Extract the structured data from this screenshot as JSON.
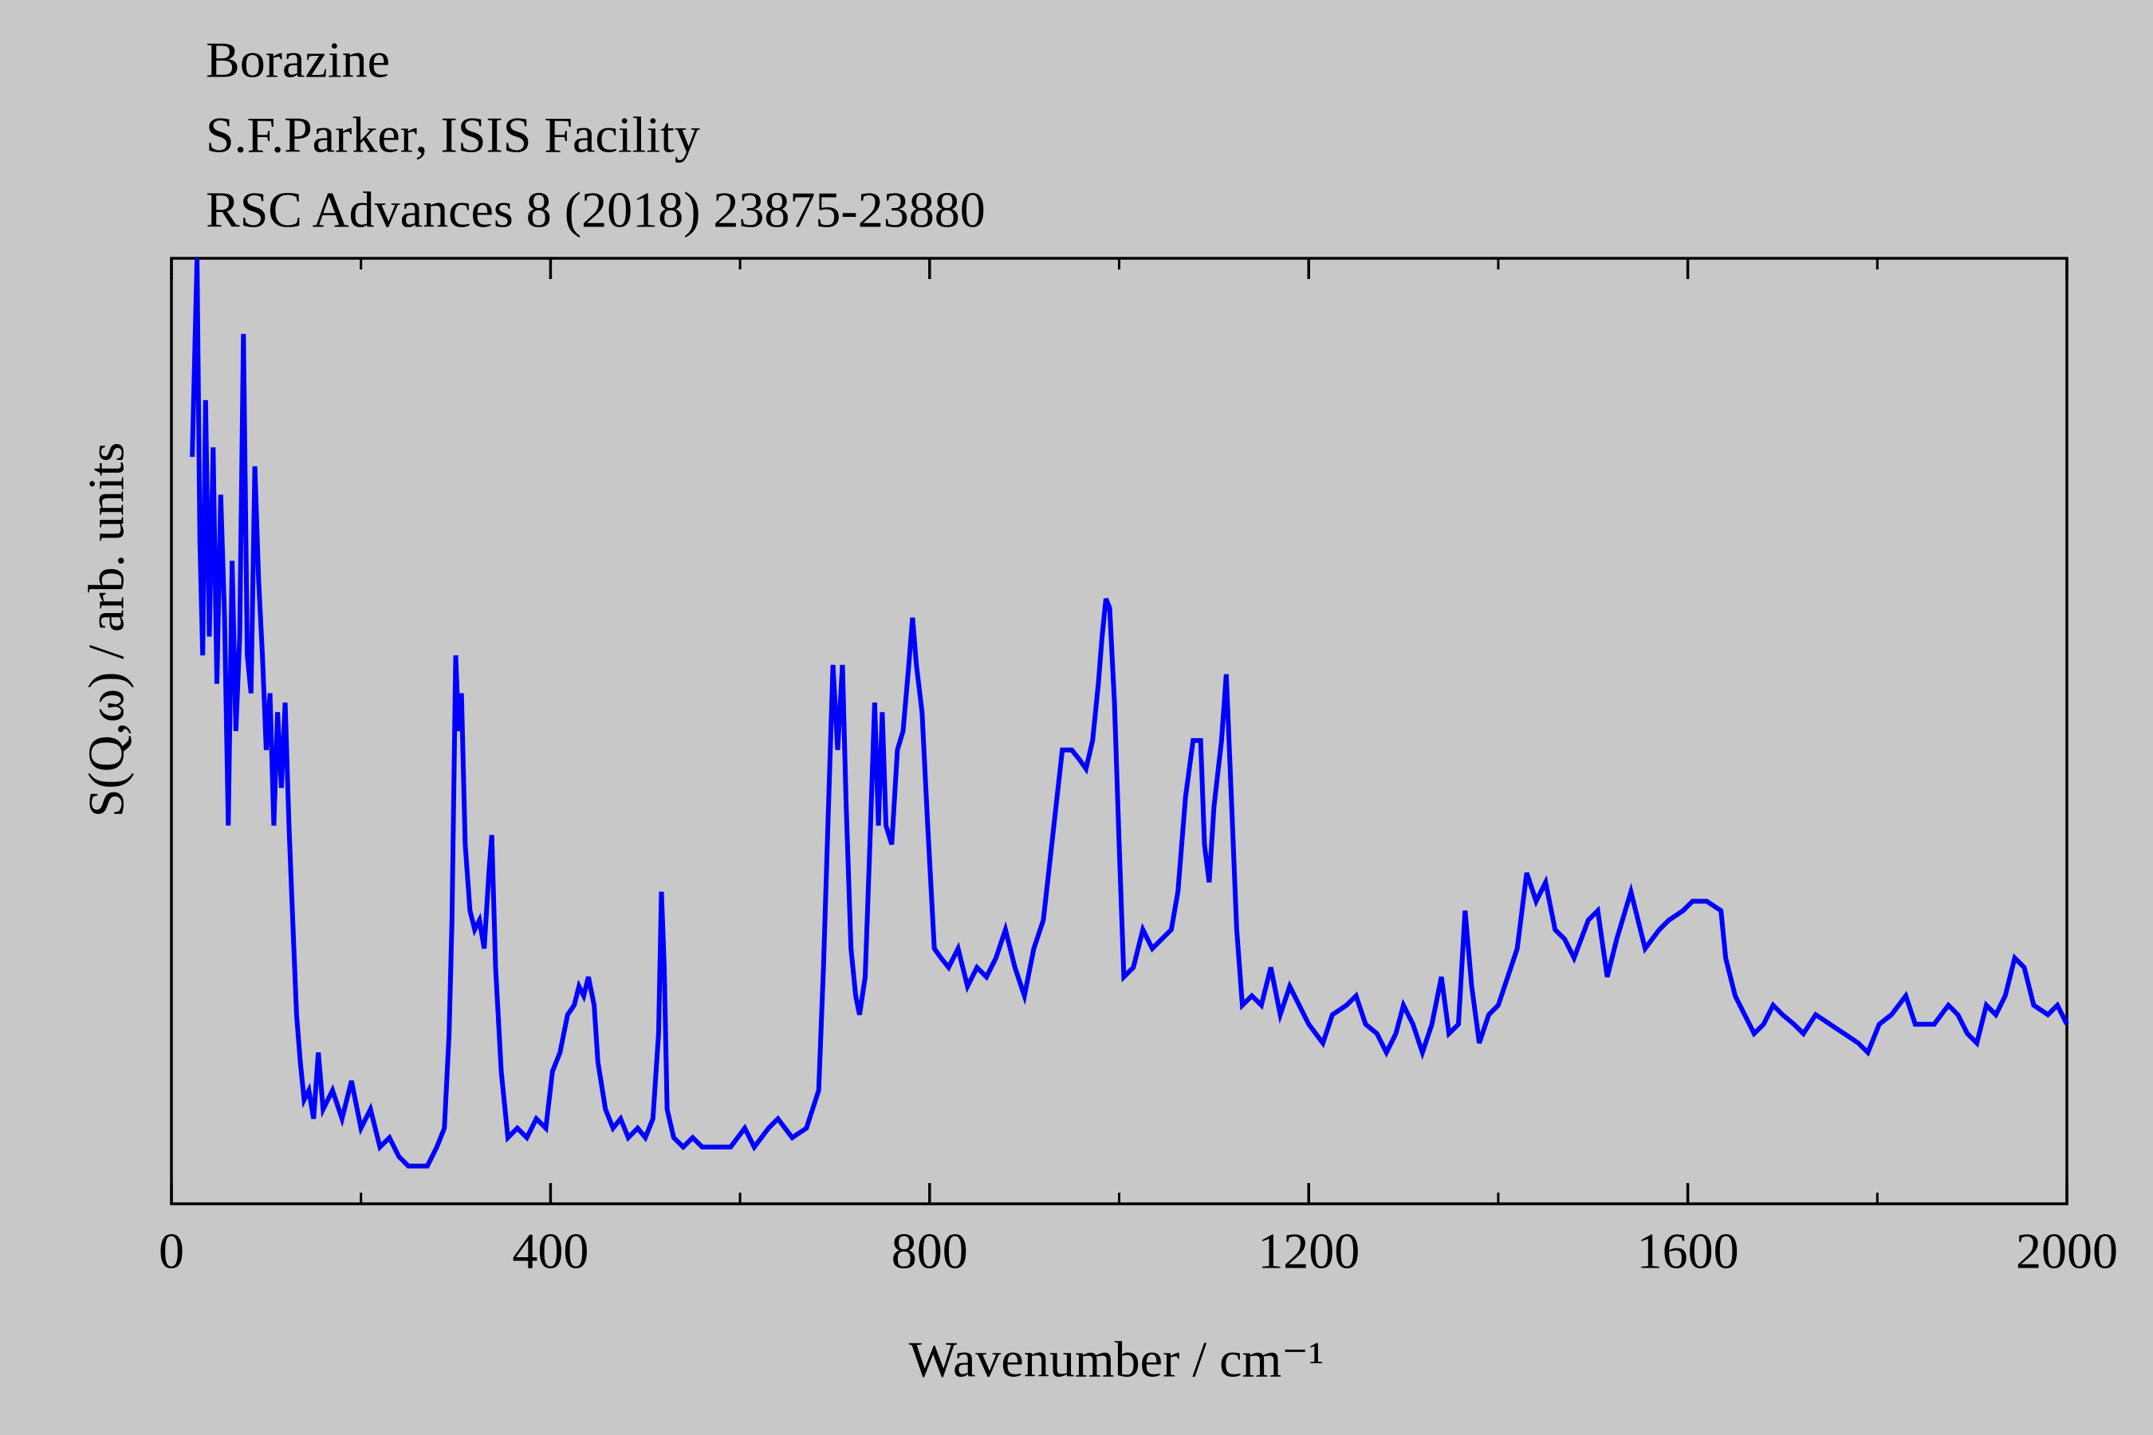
{
  "chart_data": {
    "type": "line",
    "title_lines": [
      "Borazine",
      "S.F.Parker, ISIS Facility",
      "RSC Advances 8 (2018) 23875-23880"
    ],
    "xlabel": "Wavenumber / cm⁻¹",
    "ylabel": "S(Q,ω) / arb. units",
    "xlim": [
      0,
      2000
    ],
    "xticks": [
      0,
      400,
      800,
      1200,
      1600,
      2000
    ],
    "xminorticks": [
      200,
      600,
      1000,
      1400,
      1800
    ],
    "ylim": [
      0,
      100
    ],
    "series": [
      {
        "color": "#0000ff",
        "x": [
          22,
          27,
          30,
          33,
          36,
          40,
          44,
          48,
          52,
          56,
          60,
          64,
          68,
          72,
          76,
          80,
          84,
          88,
          92,
          96,
          100,
          104,
          108,
          112,
          116,
          120,
          124,
          128,
          132,
          136,
          140,
          145,
          150,
          155,
          160,
          170,
          180,
          190,
          200,
          210,
          220,
          230,
          240,
          250,
          260,
          270,
          280,
          288,
          293,
          296,
          300,
          303,
          306,
          310,
          315,
          320,
          325,
          330,
          335,
          338,
          342,
          348,
          355,
          365,
          375,
          385,
          395,
          402,
          410,
          418,
          425,
          430,
          435,
          440,
          446,
          450,
          458,
          466,
          474,
          482,
          492,
          500,
          508,
          514,
          517,
          520,
          523,
          530,
          540,
          550,
          560,
          575,
          590,
          605,
          615,
          630,
          640,
          655,
          670,
          683,
          688,
          693,
          698,
          703,
          708,
          712,
          717,
          722,
          726,
          732,
          737,
          742,
          746,
          750,
          754,
          760,
          766,
          772,
          778,
          782,
          786,
          792,
          798,
          805,
          812,
          820,
          830,
          840,
          850,
          860,
          870,
          880,
          890,
          900,
          910,
          920,
          930,
          940,
          950,
          958,
          965,
          972,
          978,
          982,
          986,
          990,
          995,
          1000,
          1005,
          1015,
          1025,
          1035,
          1045,
          1055,
          1062,
          1070,
          1078,
          1086,
          1090,
          1095,
          1100,
          1108,
          1113,
          1118,
          1124,
          1130,
          1140,
          1150,
          1160,
          1170,
          1180,
          1190,
          1200,
          1215,
          1225,
          1240,
          1250,
          1260,
          1272,
          1282,
          1292,
          1300,
          1310,
          1320,
          1330,
          1340,
          1348,
          1358,
          1365,
          1372,
          1380,
          1390,
          1400,
          1410,
          1420,
          1430,
          1440,
          1450,
          1460,
          1470,
          1480,
          1495,
          1505,
          1515,
          1525,
          1540,
          1555,
          1570,
          1580,
          1595,
          1605,
          1620,
          1635,
          1640,
          1650,
          1660,
          1670,
          1680,
          1690,
          1700,
          1712,
          1722,
          1735,
          1750,
          1765,
          1780,
          1790,
          1802,
          1815,
          1830,
          1840,
          1860,
          1875,
          1885,
          1895,
          1905,
          1915,
          1925,
          1935,
          1945,
          1955,
          1965,
          1980,
          1990,
          2000
        ],
        "values": [
          79,
          100,
          70,
          58,
          85,
          60,
          80,
          55,
          75,
          62,
          40,
          68,
          50,
          60,
          92,
          58,
          54,
          78,
          66,
          58,
          48,
          54,
          40,
          52,
          44,
          53,
          40,
          30,
          20,
          15,
          11,
          12,
          9,
          16,
          10,
          12,
          9,
          13,
          8,
          10,
          6,
          7,
          5,
          4,
          4,
          4,
          6,
          8,
          18,
          30,
          58,
          50,
          54,
          38,
          31,
          29,
          30,
          27,
          35,
          39,
          25,
          14,
          7,
          8,
          7,
          9,
          8,
          14,
          16,
          20,
          21,
          23,
          22,
          24,
          21,
          15,
          10,
          8,
          9,
          7,
          8,
          7,
          9,
          18,
          33,
          25,
          10,
          7,
          6,
          7,
          6,
          6,
          6,
          8,
          6,
          8,
          9,
          7,
          8,
          12,
          25,
          41,
          57,
          48,
          57,
          42,
          27,
          22,
          20,
          24,
          38,
          53,
          40,
          52,
          40,
          38,
          48,
          50,
          57,
          62,
          57,
          52,
          40,
          27,
          26,
          25,
          27,
          23,
          25,
          24,
          26,
          29,
          25,
          22,
          27,
          30,
          39,
          48,
          48,
          47,
          46,
          49,
          55,
          60,
          64,
          63,
          53,
          38,
          24,
          25,
          29,
          27,
          28,
          29,
          33,
          43,
          49,
          49,
          38,
          34,
          42,
          49,
          56,
          44,
          29,
          21,
          22,
          21,
          25,
          20,
          23,
          21,
          19,
          17,
          20,
          21,
          22,
          19,
          18,
          16,
          18,
          21,
          19,
          16,
          19,
          24,
          18,
          19,
          31,
          23,
          17,
          20,
          21,
          24,
          27,
          35,
          32,
          34,
          29,
          28,
          26,
          30,
          31,
          24,
          28,
          33,
          27,
          29,
          30,
          31,
          32,
          32,
          31,
          26,
          22,
          20,
          18,
          19,
          21,
          20,
          19,
          18,
          20,
          19,
          18,
          17,
          16,
          19,
          20,
          22,
          19,
          19,
          21,
          20,
          18,
          17,
          21,
          20,
          22,
          26,
          25,
          21,
          20,
          21,
          19
        ]
      }
    ]
  }
}
